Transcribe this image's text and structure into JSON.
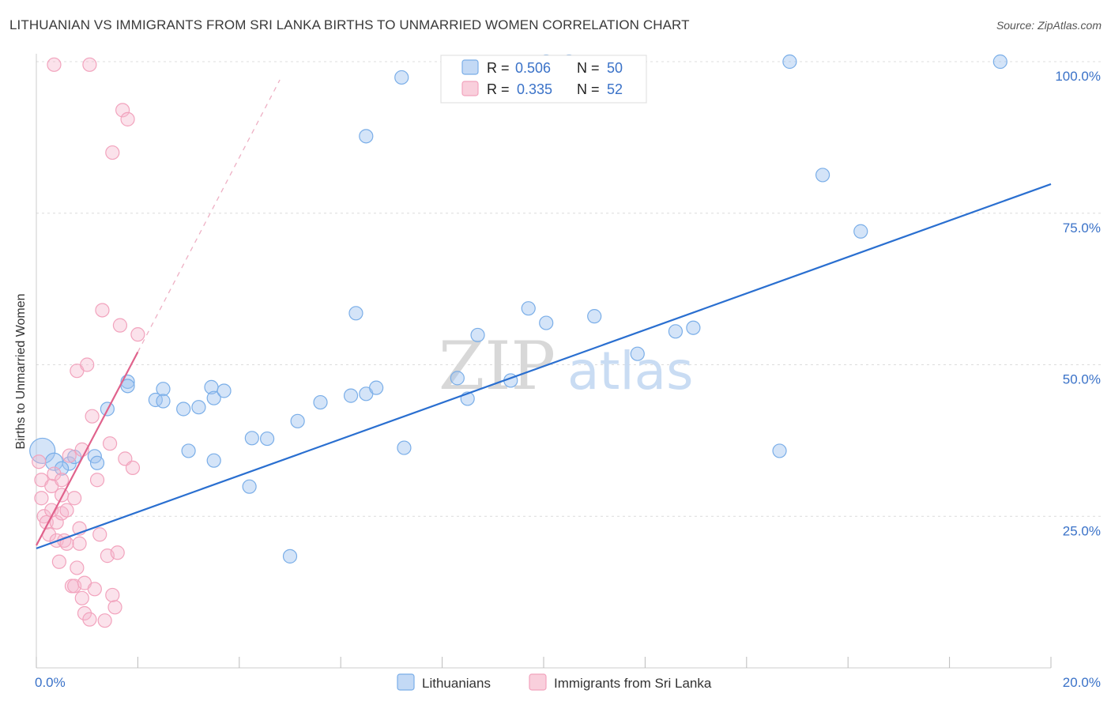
{
  "chart_data": {
    "type": "scatter",
    "title": "LITHUANIAN VS IMMIGRANTS FROM SRI LANKA BIRTHS TO UNMARRIED WOMEN CORRELATION CHART",
    "source": "Source: ZipAtlas.com",
    "watermark": {
      "zip": "ZIP",
      "atlas": "atlas"
    },
    "xlabel": "",
    "ylabel": "Births to Unmarried Women",
    "xlim": [
      0,
      20
    ],
    "ylim": [
      0,
      100
    ],
    "x_tick_labels": {
      "min": "0.0%",
      "max": "20.0%"
    },
    "y_ticks": [
      {
        "value": 25,
        "label": "25.0%"
      },
      {
        "value": 50,
        "label": "50.0%"
      },
      {
        "value": 75,
        "label": "75.0%"
      },
      {
        "value": 100,
        "label": "100.0%"
      }
    ],
    "colors": {
      "blue": "#7aaee8",
      "blue_line": "#2a6fd0",
      "pink": "#f2a3bd",
      "pink_line": "#e0628c",
      "text_blue": "#3a72c8"
    },
    "legend_stats": [
      {
        "r_label": "R =",
        "r": "0.506",
        "n_label": "N =",
        "n": "50",
        "color": "blue"
      },
      {
        "r_label": "R =",
        "r": "0.335",
        "n_label": "N =",
        "n": "52",
        "color": "pink"
      }
    ],
    "series": [
      {
        "name": "Lithuanians",
        "color": "blue",
        "trend": {
          "x0": 0.0,
          "y0": 19.7,
          "x1": 20.0,
          "y1": 79.8
        },
        "points": [
          [
            0.12,
            35.8
          ],
          [
            0.35,
            34.0
          ],
          [
            0.65,
            33.7
          ],
          [
            0.5,
            32.9
          ],
          [
            0.75,
            34.8
          ],
          [
            1.15,
            34.9
          ],
          [
            1.4,
            42.7
          ],
          [
            1.2,
            33.8
          ],
          [
            1.8,
            47.2
          ],
          [
            1.8,
            46.5
          ],
          [
            2.35,
            44.2
          ],
          [
            2.5,
            46.0
          ],
          [
            2.5,
            44.0
          ],
          [
            2.9,
            42.7
          ],
          [
            3.2,
            43.0
          ],
          [
            3.45,
            46.3
          ],
          [
            3.5,
            44.5
          ],
          [
            3.7,
            45.7
          ],
          [
            3.0,
            35.8
          ],
          [
            3.5,
            34.2
          ],
          [
            4.25,
            37.9
          ],
          [
            4.55,
            37.8
          ],
          [
            4.2,
            29.9
          ],
          [
            5.6,
            43.8
          ],
          [
            6.2,
            44.9
          ],
          [
            6.5,
            45.2
          ],
          [
            6.7,
            46.2
          ],
          [
            5.0,
            18.4
          ],
          [
            5.15,
            40.7
          ],
          [
            6.3,
            58.5
          ],
          [
            6.5,
            87.7
          ],
          [
            7.2,
            97.4
          ],
          [
            7.25,
            36.3
          ],
          [
            8.3,
            47.8
          ],
          [
            8.5,
            44.4
          ],
          [
            8.7,
            54.9
          ],
          [
            9.35,
            47.4
          ],
          [
            9.7,
            59.3
          ],
          [
            10.05,
            56.9
          ],
          [
            10.05,
            100.0
          ],
          [
            10.5,
            100.0
          ],
          [
            11.0,
            58.0
          ],
          [
            11.85,
            51.8
          ],
          [
            12.6,
            55.5
          ],
          [
            12.95,
            56.1
          ],
          [
            14.65,
            35.8
          ],
          [
            14.85,
            100.0
          ],
          [
            15.5,
            81.3
          ],
          [
            16.25,
            72.0
          ],
          [
            19.0,
            100.0
          ]
        ]
      },
      {
        "name": "Immigrants from Sri Lanka",
        "color": "pink",
        "trend": {
          "x0": 0.0,
          "y0": 20.2,
          "x1": 2.0,
          "y1": 52.1
        },
        "trend_ext": {
          "x0": 2.0,
          "y0": 52.1,
          "x1": 4.8,
          "y1": 97.0
        },
        "points": [
          [
            0.05,
            34.0
          ],
          [
            0.1,
            31.0
          ],
          [
            0.1,
            28.0
          ],
          [
            0.15,
            25.0
          ],
          [
            0.2,
            24.0
          ],
          [
            0.25,
            22.0
          ],
          [
            0.3,
            26.0
          ],
          [
            0.3,
            30.0
          ],
          [
            0.35,
            32.0
          ],
          [
            0.4,
            24.0
          ],
          [
            0.4,
            21.0
          ],
          [
            0.45,
            17.5
          ],
          [
            0.5,
            28.5
          ],
          [
            0.5,
            25.5
          ],
          [
            0.5,
            31.0
          ],
          [
            0.55,
            21.0
          ],
          [
            0.6,
            20.5
          ],
          [
            0.6,
            26.0
          ],
          [
            0.65,
            35.0
          ],
          [
            0.7,
            13.5
          ],
          [
            0.75,
            13.5
          ],
          [
            0.75,
            28.0
          ],
          [
            0.8,
            49.0
          ],
          [
            0.8,
            16.5
          ],
          [
            0.85,
            20.5
          ],
          [
            0.85,
            23.0
          ],
          [
            0.9,
            11.5
          ],
          [
            0.9,
            36.0
          ],
          [
            0.95,
            14.0
          ],
          [
            0.95,
            9.0
          ],
          [
            1.0,
            50.0
          ],
          [
            1.05,
            8.0
          ],
          [
            1.1,
            41.5
          ],
          [
            1.15,
            13.0
          ],
          [
            1.2,
            31.0
          ],
          [
            1.25,
            22.0
          ],
          [
            1.3,
            59.0
          ],
          [
            1.35,
            7.8
          ],
          [
            1.4,
            18.5
          ],
          [
            1.45,
            37.0
          ],
          [
            1.5,
            12.0
          ],
          [
            1.55,
            10.0
          ],
          [
            1.6,
            19.0
          ],
          [
            1.65,
            56.5
          ],
          [
            1.75,
            34.5
          ],
          [
            1.9,
            33.0
          ],
          [
            2.0,
            55.0
          ],
          [
            1.7,
            92.0
          ],
          [
            1.8,
            90.5
          ],
          [
            1.5,
            85.0
          ],
          [
            1.05,
            99.5
          ],
          [
            0.35,
            99.5
          ]
        ]
      }
    ]
  }
}
